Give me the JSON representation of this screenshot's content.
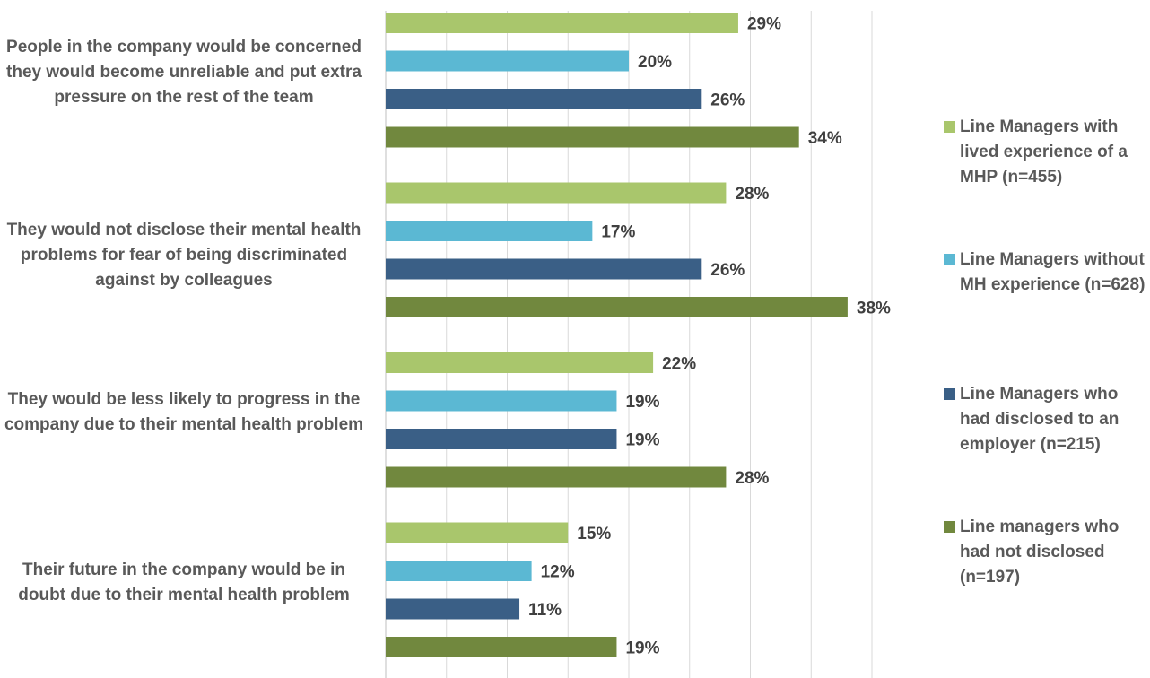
{
  "chart_data": {
    "type": "bar",
    "orientation": "horizontal",
    "categories": [
      "People in the company would be concerned they would become unreliable and put extra pressure on the rest of the team",
      "They would not disclose their mental health problems for fear of being discriminated against by colleagues",
      "They would be less likely to progress in the company due to their mental health problem",
      "Their future in the company would be in doubt due to their mental health problem"
    ],
    "series": [
      {
        "name": "Line Managers with lived experience of a MHP (n=455)",
        "color": "#a9c66c",
        "values": [
          29,
          28,
          22,
          15
        ],
        "labels": [
          "29%",
          "28%",
          "22%",
          "15%"
        ]
      },
      {
        "name": "Line Managers without MH experience (n=628)",
        "color": "#5bb8d3",
        "values": [
          20,
          17,
          19,
          12
        ],
        "labels": [
          "20%",
          "17%",
          "19%",
          "12%"
        ]
      },
      {
        "name": "Line Managers who had disclosed to an employer (n=215)",
        "color": "#3a5f86",
        "values": [
          26,
          26,
          19,
          11
        ],
        "labels": [
          "26%",
          "26%",
          "19%",
          "11%"
        ]
      },
      {
        "name": "Line managers who had not disclosed (n=197)",
        "color": "#71883e",
        "values": [
          34,
          38,
          28,
          19
        ],
        "labels": [
          "34%",
          "38%",
          "28%",
          "19%"
        ]
      }
    ],
    "xlim": [
      0,
      40
    ],
    "grid": true,
    "legend_position": "right"
  }
}
